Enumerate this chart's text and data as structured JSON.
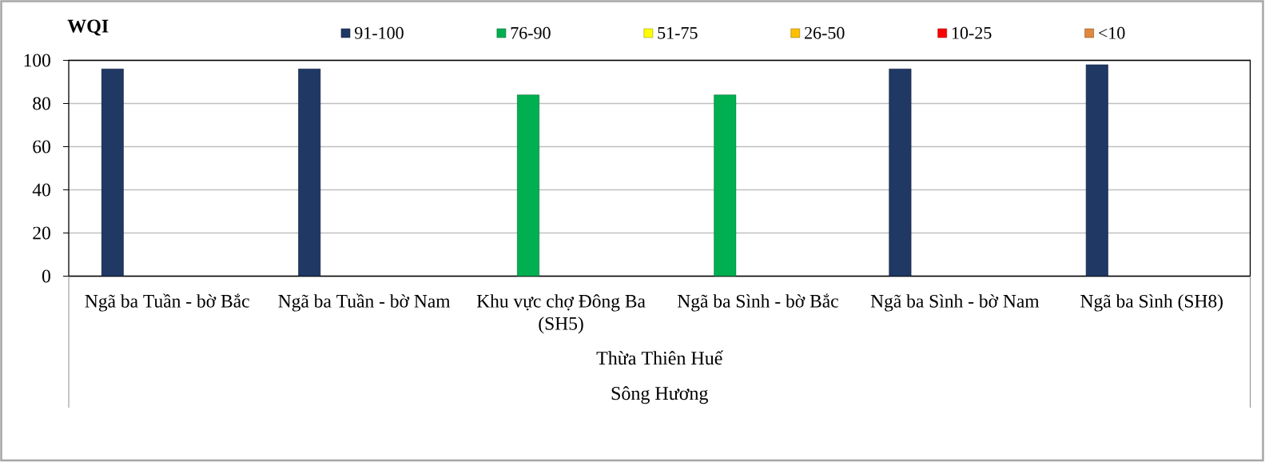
{
  "chart_data": {
    "type": "bar",
    "ylabel": "WQI",
    "categories": [
      "Ngã ba Tuần - bờ Bắc",
      "Ngã ba Tuần - bờ Nam",
      "Khu vực chợ Đông Ba (SH5)",
      "Ngã ba Sình - bờ Bắc",
      "Ngã ba Sình - bờ Nam",
      "Ngã ba Sình (SH8)"
    ],
    "series": [
      {
        "name": "91-100",
        "color": "#1F3864",
        "values": [
          96,
          96,
          null,
          null,
          96,
          98
        ]
      },
      {
        "name": "76-90",
        "color": "#00B050",
        "values": [
          null,
          null,
          84,
          84,
          null,
          null
        ]
      },
      {
        "name": "51-75",
        "color": "#FFFF00",
        "values": [
          null,
          null,
          null,
          null,
          null,
          null
        ]
      },
      {
        "name": "26-50",
        "color": "#FFC000",
        "values": [
          null,
          null,
          null,
          null,
          null,
          null
        ]
      },
      {
        "name": "10-25",
        "color": "#FF0000",
        "values": [
          null,
          null,
          null,
          null,
          null,
          null
        ]
      },
      {
        "name": "<10",
        "color": "#E0883F",
        "values": [
          null,
          null,
          null,
          null,
          null,
          null
        ]
      }
    ],
    "ylim": [
      0,
      100
    ],
    "yticks": [
      0,
      20,
      40,
      60,
      80,
      100
    ],
    "grid": "y",
    "legend": "top",
    "annotations": [
      "Thừa Thiên Huế",
      "Sông Hương"
    ]
  }
}
